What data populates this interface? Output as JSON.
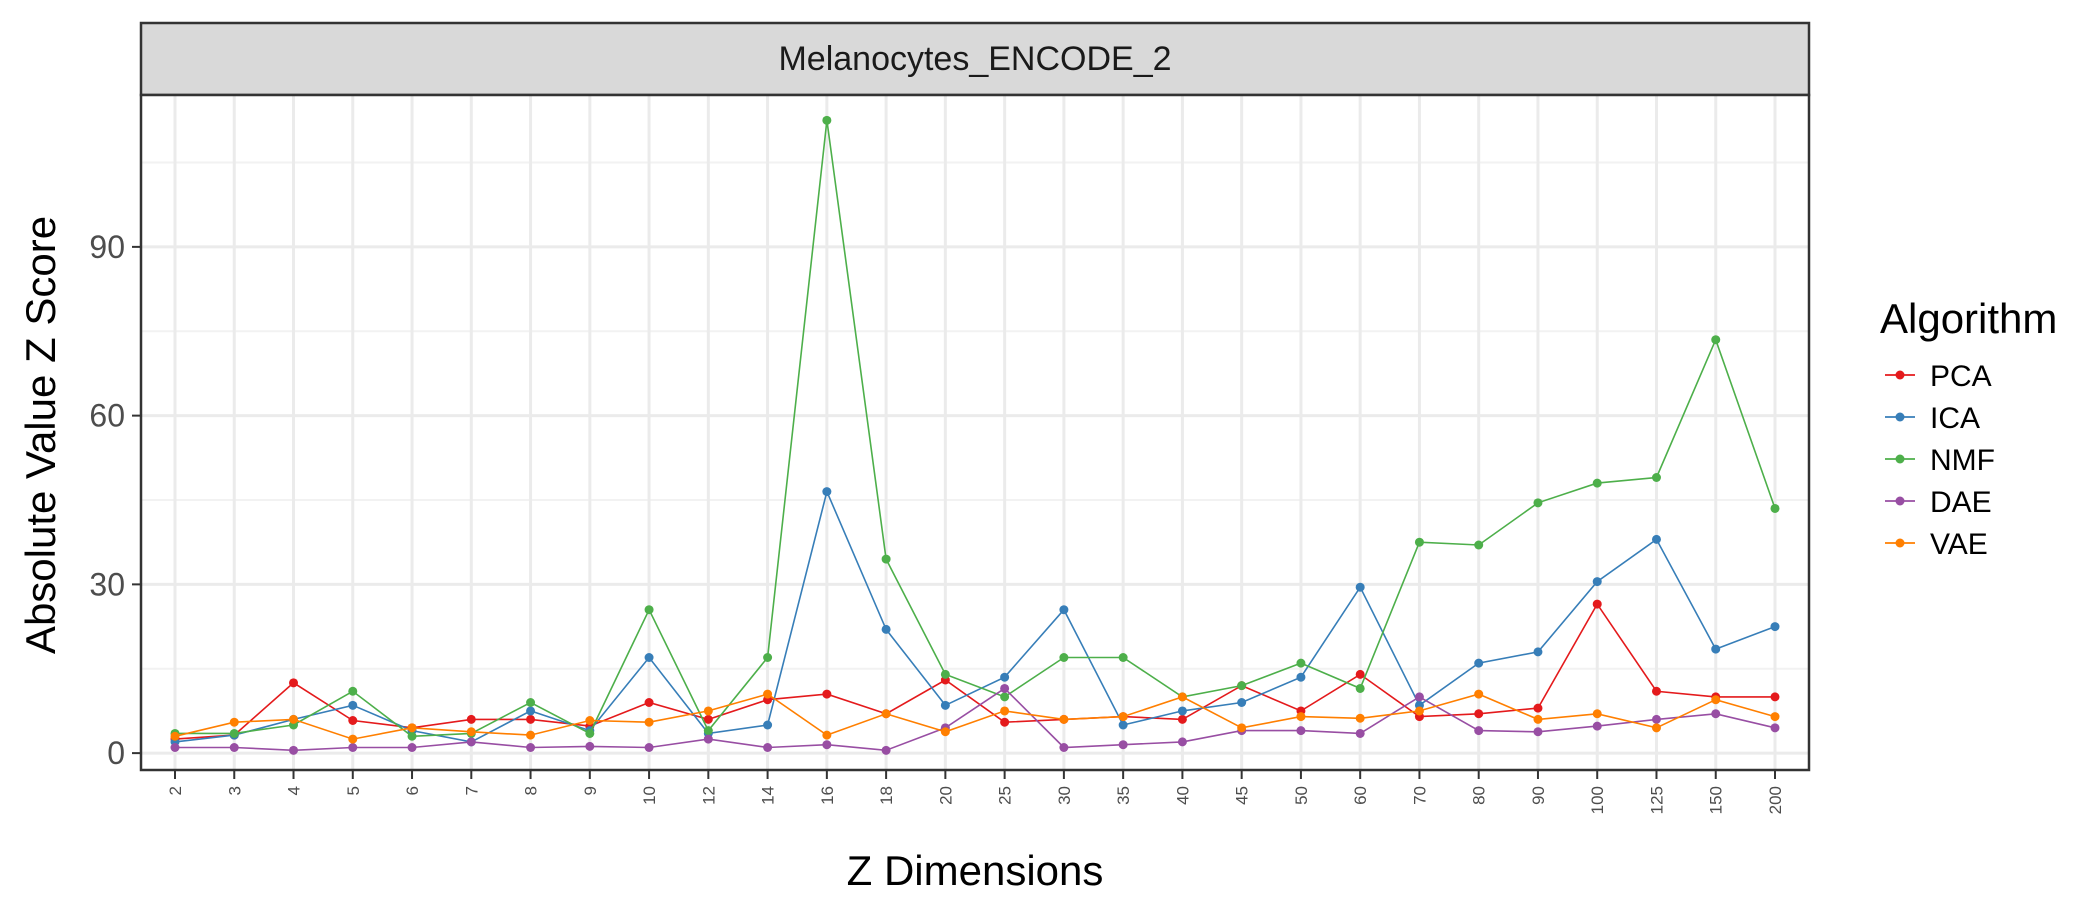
{
  "chart_data": {
    "type": "line",
    "facet_title": "Melanocytes_ENCODE_2",
    "xlabel": "Z Dimensions",
    "ylabel": "Absolute Value Z Score",
    "legend_title": "Algorithm",
    "legend_position": "right",
    "grid": true,
    "ylim": [
      -3,
      117
    ],
    "y_ticks": [
      "0",
      "30",
      "60",
      "90"
    ],
    "x_categories": [
      "2",
      "3",
      "4",
      "5",
      "6",
      "7",
      "8",
      "9",
      "10",
      "12",
      "14",
      "16",
      "18",
      "20",
      "25",
      "30",
      "35",
      "40",
      "45",
      "50",
      "60",
      "70",
      "80",
      "90",
      "100",
      "125",
      "150",
      "200"
    ],
    "series": [
      {
        "name": "PCA",
        "color": "#e41a1c",
        "values": [
          2.5,
          3.2,
          12.5,
          5.8,
          4.5,
          6.0,
          6.0,
          4.8,
          9.0,
          6.0,
          9.5,
          10.5,
          7.0,
          13.0,
          5.5,
          6.0,
          6.5,
          6.0,
          12.0,
          7.5,
          14.0,
          6.5,
          7.0,
          8.0,
          26.5,
          11.0,
          10.0,
          10.0
        ]
      },
      {
        "name": "ICA",
        "color": "#377eb8",
        "values": [
          2.0,
          3.2,
          6.0,
          8.5,
          4.0,
          2.0,
          7.5,
          4.0,
          17.0,
          3.5,
          5.0,
          46.5,
          22.0,
          8.5,
          13.5,
          25.5,
          5.0,
          7.5,
          9.0,
          13.5,
          29.5,
          8.5,
          16.0,
          18.0,
          30.5,
          38.0,
          18.5,
          22.5
        ]
      },
      {
        "name": "NMF",
        "color": "#4daf4a",
        "values": [
          3.5,
          3.5,
          5.0,
          11.0,
          3.0,
          3.5,
          9.0,
          3.5,
          25.5,
          4.0,
          17.0,
          112.5,
          34.5,
          14.0,
          10.0,
          17.0,
          17.0,
          10.0,
          12.0,
          16.0,
          11.5,
          37.5,
          37.0,
          44.5,
          48.0,
          49.0,
          73.5,
          43.5
        ]
      },
      {
        "name": "DAE",
        "color": "#984ea3",
        "values": [
          1.0,
          1.0,
          0.5,
          1.0,
          1.0,
          2.0,
          1.0,
          1.2,
          1.0,
          2.5,
          1.0,
          1.5,
          0.5,
          4.5,
          11.5,
          1.0,
          1.5,
          2.0,
          4.0,
          4.0,
          3.5,
          10.0,
          4.0,
          3.8,
          4.8,
          6.0,
          7.0,
          4.5
        ]
      },
      {
        "name": "VAE",
        "color": "#ff7f00",
        "values": [
          3.0,
          5.5,
          6.0,
          2.5,
          4.5,
          3.8,
          3.2,
          5.8,
          5.5,
          7.5,
          10.5,
          3.2,
          7.0,
          3.8,
          7.5,
          6.0,
          6.5,
          10.0,
          4.5,
          6.5,
          6.2,
          7.5,
          10.5,
          6.0,
          7.0,
          4.5,
          9.5,
          6.5
        ]
      }
    ]
  }
}
